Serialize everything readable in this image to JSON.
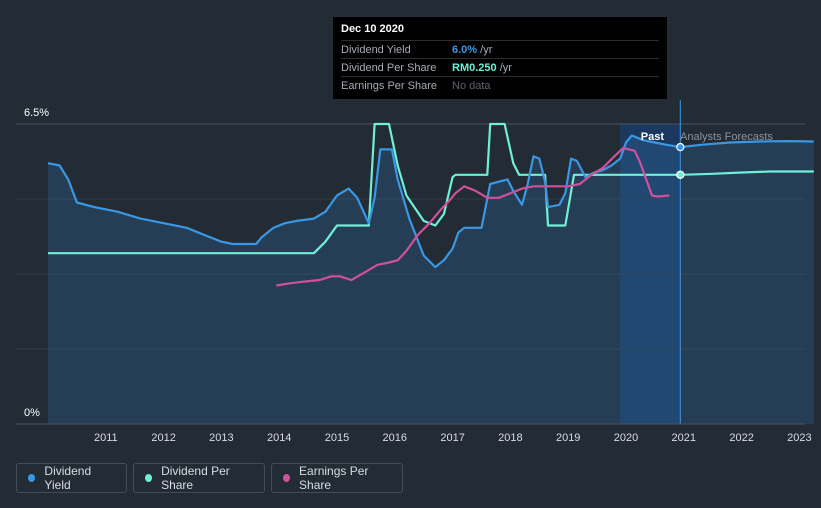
{
  "tooltip": {
    "date": "Dec 10 2020",
    "rows": [
      {
        "label": "Dividend Yield",
        "value": "6.0%",
        "suffix": " /yr"
      },
      {
        "label": "Dividend Per Share",
        "value": "RM0.250",
        "suffix": " /yr"
      },
      {
        "label": "Earnings Per Share",
        "value": "No data",
        "suffix": ""
      }
    ]
  },
  "legend": [
    {
      "label": "Dividend Yield",
      "color": "#3a97e3"
    },
    {
      "label": "Dividend Per Share",
      "color": "#6ff0d6"
    },
    {
      "label": "Earnings Per Share",
      "color": "#d0509a"
    }
  ],
  "chart_data": {
    "type": "line",
    "y_top_label": "6.5%",
    "y_bottom_label": "0%",
    "ylim": [
      0,
      6.5
    ],
    "xlim": [
      2010.0,
      2023.25
    ],
    "x_ticks": [
      "2011",
      "2012",
      "2013",
      "2014",
      "2015",
      "2016",
      "2017",
      "2018",
      "2019",
      "2020",
      "2021",
      "2022",
      "2023"
    ],
    "past_label": "Past",
    "forecast_label": "Analysts Forecasts",
    "forecast_start": 2020.94,
    "highlight_start": 2019.9,
    "colors": {
      "yield": "#3a97e3",
      "dps": "#6ff0d6",
      "eps": "#d0509a",
      "forecast_region": "#1a3c66"
    },
    "series": [
      {
        "name": "Dividend Yield",
        "points": [
          [
            2010.0,
            5.65
          ],
          [
            2010.2,
            5.6
          ],
          [
            2010.35,
            5.3
          ],
          [
            2010.5,
            4.8
          ],
          [
            2010.8,
            4.7
          ],
          [
            2011.2,
            4.6
          ],
          [
            2011.6,
            4.45
          ],
          [
            2012.0,
            4.35
          ],
          [
            2012.4,
            4.25
          ],
          [
            2012.8,
            4.05
          ],
          [
            2013.0,
            3.95
          ],
          [
            2013.2,
            3.9
          ],
          [
            2013.6,
            3.9
          ],
          [
            2013.7,
            4.05
          ],
          [
            2013.9,
            4.25
          ],
          [
            2014.1,
            4.35
          ],
          [
            2014.3,
            4.4
          ],
          [
            2014.6,
            4.45
          ],
          [
            2014.8,
            4.6
          ],
          [
            2015.0,
            4.95
          ],
          [
            2015.2,
            5.1
          ],
          [
            2015.35,
            4.9
          ],
          [
            2015.55,
            4.35
          ],
          [
            2015.65,
            4.9
          ],
          [
            2015.75,
            5.95
          ],
          [
            2015.95,
            5.95
          ],
          [
            2016.05,
            5.3
          ],
          [
            2016.25,
            4.45
          ],
          [
            2016.5,
            3.65
          ],
          [
            2016.7,
            3.4
          ],
          [
            2016.85,
            3.55
          ],
          [
            2017.0,
            3.8
          ],
          [
            2017.1,
            4.15
          ],
          [
            2017.2,
            4.25
          ],
          [
            2017.5,
            4.25
          ],
          [
            2017.65,
            5.2
          ],
          [
            2017.8,
            5.25
          ],
          [
            2017.95,
            5.3
          ],
          [
            2018.05,
            5.05
          ],
          [
            2018.2,
            4.75
          ],
          [
            2018.3,
            5.2
          ],
          [
            2018.4,
            5.8
          ],
          [
            2018.5,
            5.75
          ],
          [
            2018.6,
            5.25
          ],
          [
            2018.65,
            4.7
          ],
          [
            2018.85,
            4.75
          ],
          [
            2018.95,
            5.0
          ],
          [
            2019.05,
            5.75
          ],
          [
            2019.15,
            5.7
          ],
          [
            2019.3,
            5.35
          ],
          [
            2019.45,
            5.45
          ],
          [
            2019.6,
            5.5
          ],
          [
            2019.75,
            5.6
          ],
          [
            2019.9,
            5.75
          ],
          [
            2020.0,
            6.1
          ],
          [
            2020.1,
            6.25
          ],
          [
            2020.3,
            6.15
          ],
          [
            2020.5,
            6.1
          ],
          [
            2020.7,
            6.05
          ],
          [
            2020.94,
            6.0
          ],
          [
            2021.3,
            6.05
          ],
          [
            2021.8,
            6.1
          ],
          [
            2022.3,
            6.12
          ],
          [
            2022.8,
            6.13
          ],
          [
            2023.25,
            6.12
          ]
        ]
      },
      {
        "name": "Dividend Per Share",
        "points": [
          [
            2010.0,
            3.7
          ],
          [
            2014.6,
            3.7
          ],
          [
            2014.8,
            3.95
          ],
          [
            2015.0,
            4.3
          ],
          [
            2015.55,
            4.3
          ],
          [
            2015.65,
            6.5
          ],
          [
            2015.9,
            6.5
          ],
          [
            2016.05,
            5.6
          ],
          [
            2016.2,
            4.95
          ],
          [
            2016.5,
            4.4
          ],
          [
            2016.7,
            4.3
          ],
          [
            2016.85,
            4.55
          ],
          [
            2017.0,
            5.35
          ],
          [
            2017.05,
            5.4
          ],
          [
            2017.6,
            5.4
          ],
          [
            2017.65,
            6.5
          ],
          [
            2017.9,
            6.5
          ],
          [
            2018.05,
            5.65
          ],
          [
            2018.15,
            5.4
          ],
          [
            2018.6,
            5.4
          ],
          [
            2018.65,
            4.3
          ],
          [
            2018.95,
            4.3
          ],
          [
            2019.1,
            5.4
          ],
          [
            2020.94,
            5.4
          ],
          [
            2021.5,
            5.42
          ],
          [
            2022.0,
            5.45
          ],
          [
            2022.5,
            5.47
          ],
          [
            2023.25,
            5.47
          ]
        ]
      },
      {
        "name": "Earnings Per Share",
        "points": [
          [
            2013.95,
            3.0
          ],
          [
            2014.2,
            3.05
          ],
          [
            2014.4,
            3.08
          ],
          [
            2014.7,
            3.12
          ],
          [
            2014.9,
            3.2
          ],
          [
            2015.05,
            3.2
          ],
          [
            2015.25,
            3.12
          ],
          [
            2015.5,
            3.3
          ],
          [
            2015.7,
            3.45
          ],
          [
            2015.9,
            3.5
          ],
          [
            2016.05,
            3.55
          ],
          [
            2016.2,
            3.75
          ],
          [
            2016.4,
            4.1
          ],
          [
            2016.6,
            4.35
          ],
          [
            2016.8,
            4.65
          ],
          [
            2016.95,
            4.85
          ],
          [
            2017.05,
            5.0
          ],
          [
            2017.2,
            5.15
          ],
          [
            2017.4,
            5.05
          ],
          [
            2017.6,
            4.9
          ],
          [
            2017.8,
            4.9
          ],
          [
            2018.0,
            5.0
          ],
          [
            2018.2,
            5.1
          ],
          [
            2018.4,
            5.15
          ],
          [
            2018.7,
            5.15
          ],
          [
            2019.0,
            5.15
          ],
          [
            2019.2,
            5.2
          ],
          [
            2019.4,
            5.4
          ],
          [
            2019.6,
            5.55
          ],
          [
            2019.8,
            5.8
          ],
          [
            2019.95,
            5.98
          ],
          [
            2020.15,
            5.92
          ],
          [
            2020.25,
            5.65
          ],
          [
            2020.35,
            5.3
          ],
          [
            2020.45,
            4.95
          ],
          [
            2020.55,
            4.93
          ],
          [
            2020.75,
            4.95
          ]
        ]
      }
    ]
  }
}
